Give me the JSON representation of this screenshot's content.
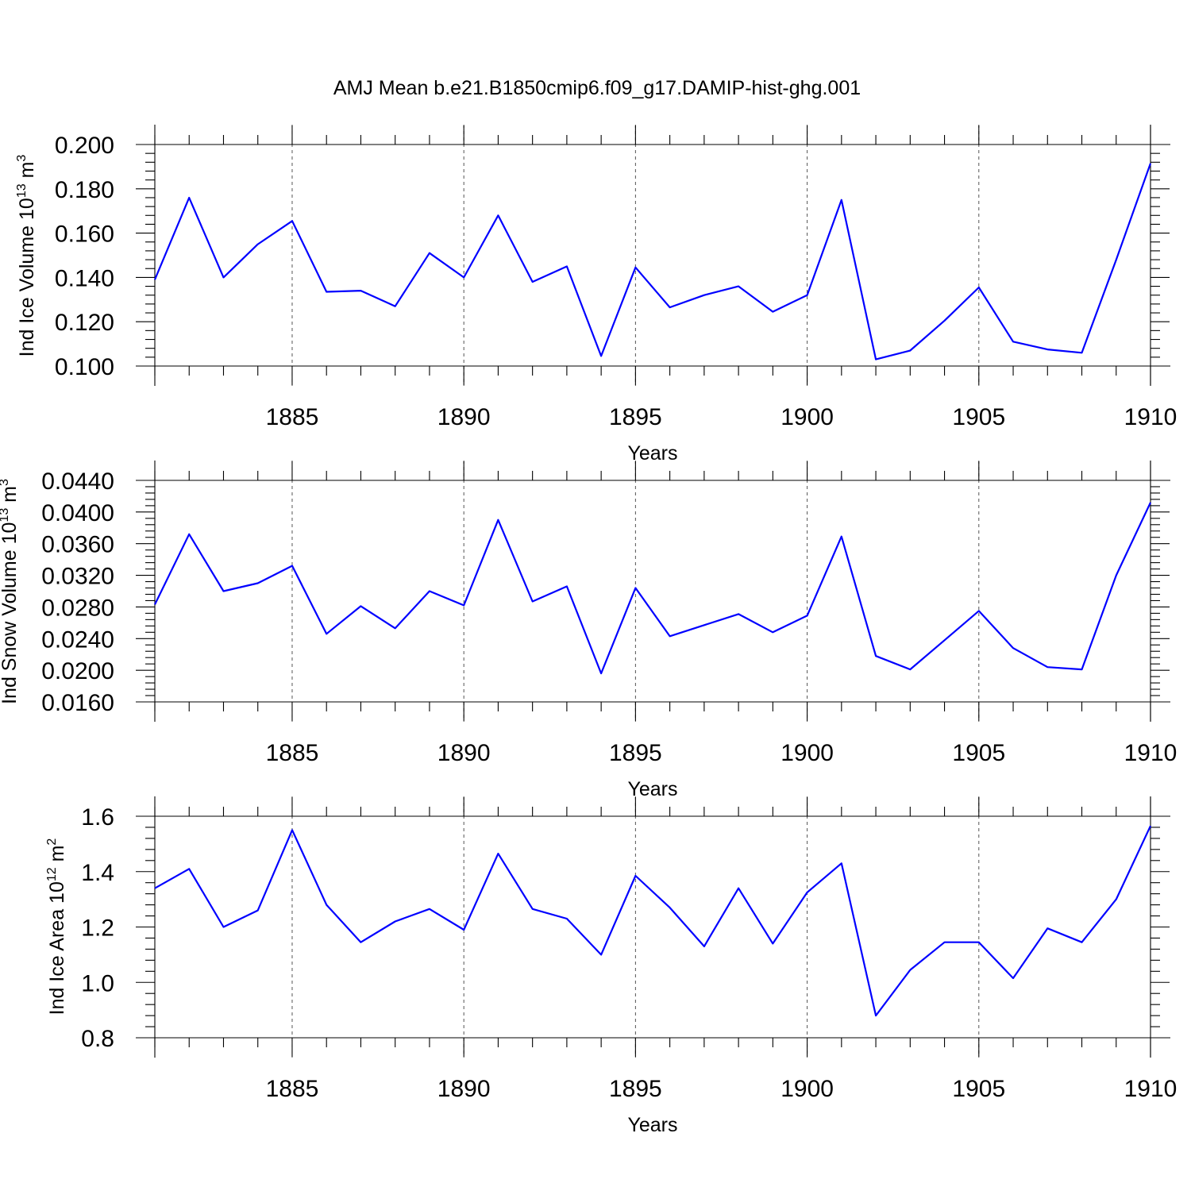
{
  "figure_title": "AMJ Mean b.e21.B1850cmip6.f09_g17.DAMIP-hist-ghg.001",
  "colors": {
    "series": "#0000ff",
    "axes": "#000000",
    "grid": "#555555"
  },
  "chart_data": [
    {
      "type": "line",
      "title": "",
      "xlabel": "Years",
      "ylabel": "Ind Ice Volume",
      "ylabel_unit_base": "10",
      "ylabel_unit_exp": "13",
      "ylabel_unit_sym": "m",
      "ylabel_unit_pow": "3",
      "xlim": [
        1881,
        1910
      ],
      "ylim": [
        0.1,
        0.2
      ],
      "xticks": [
        1885,
        1890,
        1895,
        1900,
        1905,
        1910
      ],
      "xtick_labels": [
        "1885",
        "1890",
        "1895",
        "1900",
        "1905",
        "1910"
      ],
      "yticks": [
        0.1,
        0.12,
        0.14,
        0.16,
        0.18,
        0.2
      ],
      "ytick_labels": [
        "0.100",
        "0.120",
        "0.140",
        "0.160",
        "0.180",
        "0.200"
      ],
      "grid": "x-dashed",
      "x": [
        1881,
        1882,
        1883,
        1884,
        1885,
        1886,
        1887,
        1888,
        1889,
        1890,
        1891,
        1892,
        1893,
        1894,
        1895,
        1896,
        1897,
        1898,
        1899,
        1900,
        1901,
        1902,
        1903,
        1904,
        1905,
        1906,
        1907,
        1908,
        1909,
        1910
      ],
      "values": [
        0.139,
        0.176,
        0.14,
        0.155,
        0.1655,
        0.1335,
        0.134,
        0.127,
        0.151,
        0.14,
        0.168,
        0.138,
        0.145,
        0.1045,
        0.1445,
        0.1265,
        0.132,
        0.136,
        0.1245,
        0.132,
        0.175,
        0.103,
        0.107,
        0.1205,
        0.1355,
        0.111,
        0.1075,
        0.106,
        0.148,
        0.1915
      ]
    },
    {
      "type": "line",
      "title": "",
      "xlabel": "Years",
      "ylabel": "Ind Snow Volume",
      "ylabel_unit_base": "10",
      "ylabel_unit_exp": "13",
      "ylabel_unit_sym": "m",
      "ylabel_unit_pow": "3",
      "xlim": [
        1881,
        1910
      ],
      "ylim": [
        0.016,
        0.044
      ],
      "xticks": [
        1885,
        1890,
        1895,
        1900,
        1905,
        1910
      ],
      "xtick_labels": [
        "1885",
        "1890",
        "1895",
        "1900",
        "1905",
        "1910"
      ],
      "yticks": [
        0.016,
        0.02,
        0.024,
        0.028,
        0.032,
        0.036,
        0.04,
        0.044
      ],
      "ytick_labels": [
        "0.0160",
        "0.0200",
        "0.0240",
        "0.0280",
        "0.0320",
        "0.0360",
        "0.0400",
        "0.0440"
      ],
      "grid": "x-dashed",
      "x": [
        1881,
        1882,
        1883,
        1884,
        1885,
        1886,
        1887,
        1888,
        1889,
        1890,
        1891,
        1892,
        1893,
        1894,
        1895,
        1896,
        1897,
        1898,
        1899,
        1900,
        1901,
        1902,
        1903,
        1904,
        1905,
        1906,
        1907,
        1908,
        1909,
        1910
      ],
      "values": [
        0.0283,
        0.0372,
        0.03,
        0.031,
        0.0332,
        0.0246,
        0.0281,
        0.0253,
        0.03,
        0.0282,
        0.039,
        0.0287,
        0.0306,
        0.0196,
        0.0304,
        0.0243,
        0.0257,
        0.0271,
        0.0248,
        0.0269,
        0.0369,
        0.0218,
        0.0201,
        0.0238,
        0.0275,
        0.0228,
        0.0204,
        0.0201,
        0.032,
        0.0412
      ]
    },
    {
      "type": "line",
      "title": "",
      "xlabel": "Years",
      "ylabel": "Ind Ice Area",
      "ylabel_unit_base": "10",
      "ylabel_unit_exp": "12",
      "ylabel_unit_sym": "m",
      "ylabel_unit_pow": "2",
      "xlim": [
        1881,
        1910
      ],
      "ylim": [
        0.8,
        1.6
      ],
      "xticks": [
        1885,
        1890,
        1895,
        1900,
        1905,
        1910
      ],
      "xtick_labels": [
        "1885",
        "1890",
        "1895",
        "1900",
        "1905",
        "1910"
      ],
      "yticks": [
        0.8,
        1.0,
        1.2,
        1.4,
        1.6
      ],
      "ytick_labels": [
        "0.8",
        "1.0",
        "1.2",
        "1.4",
        "1.6"
      ],
      "grid": "x-dashed",
      "x": [
        1881,
        1882,
        1883,
        1884,
        1885,
        1886,
        1887,
        1888,
        1889,
        1890,
        1891,
        1892,
        1893,
        1894,
        1895,
        1896,
        1897,
        1898,
        1899,
        1900,
        1901,
        1902,
        1903,
        1904,
        1905,
        1906,
        1907,
        1908,
        1909,
        1910
      ],
      "values": [
        1.34,
        1.41,
        1.2,
        1.26,
        1.55,
        1.28,
        1.145,
        1.22,
        1.265,
        1.19,
        1.465,
        1.265,
        1.23,
        1.1,
        1.385,
        1.27,
        1.13,
        1.34,
        1.14,
        1.325,
        1.43,
        0.88,
        1.045,
        1.145,
        1.145,
        1.015,
        1.195,
        1.145,
        1.3,
        1.565
      ]
    }
  ]
}
